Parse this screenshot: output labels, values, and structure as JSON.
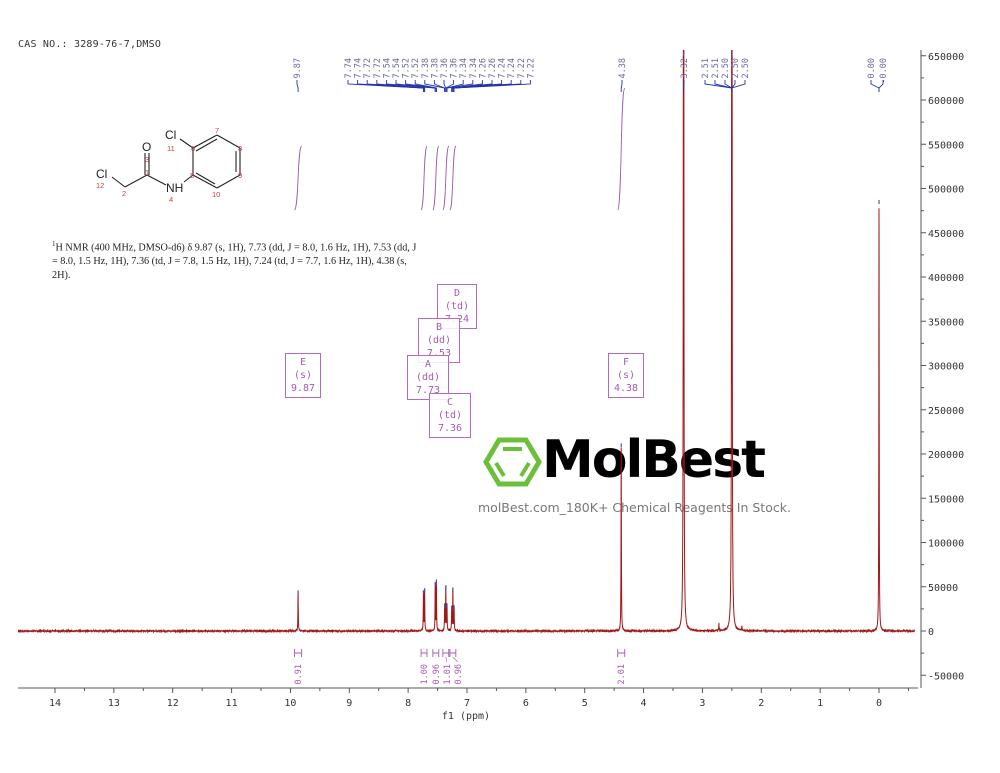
{
  "header": {
    "title": "CAS NO.: 3289-76-7,DMSO"
  },
  "nmr_description": {
    "line1_prefix": "1",
    "text": "H NMR (400 MHz, DMSO-d6) δ 9.87 (s, 1H), 7.73 (dd, J = 8.0, 1.6 Hz, 1H), 7.53 (dd, J = 8.0, 1.5 Hz, 1H), 7.36 (td, J = 7.8, 1.5 Hz, 1H), 7.24 (td, J = 7.7, 1.6 Hz, 1H), 4.38 (s, 2H)."
  },
  "structure": {
    "atoms": {
      "cl_left": "Cl",
      "cl_ring": "Cl",
      "o": "O",
      "nh": "NH"
    },
    "numbers": [
      "1",
      "2",
      "3",
      "4",
      "5",
      "6",
      "7",
      "8",
      "9",
      "10",
      "11",
      "12"
    ]
  },
  "watermark": {
    "name": "MolBest",
    "tagline": "molBest.com_180K+ Chemical Reagents In Stock.",
    "logo_color": "#6cbf3a"
  },
  "multiplet_boxes": [
    {
      "label": "E (s)",
      "shift": "9.87"
    },
    {
      "label": "D (td)",
      "shift": "7.24"
    },
    {
      "label": "B (dd)",
      "shift": "7.53"
    },
    {
      "label": "A (dd)",
      "shift": "7.73"
    },
    {
      "label": "C (td)",
      "shift": "7.36"
    },
    {
      "label": "F (s)",
      "shift": "4.38"
    }
  ],
  "chart_data": {
    "type": "line",
    "xlabel": "f1 (ppm)",
    "xlim": [
      14.63,
      -0.61
    ],
    "x_reversed": true,
    "ylim": [
      -64000,
      654000
    ],
    "x_ticks": [
      "14",
      "13",
      "12",
      "11",
      "10",
      "9",
      "8",
      "7",
      "6",
      "5",
      "4",
      "3",
      "2",
      "1",
      "0"
    ],
    "y_ticks": [
      "650000",
      "600000",
      "550000",
      "500000",
      "450000",
      "400000",
      "350000",
      "300000",
      "250000",
      "200000",
      "150000",
      "100000",
      "50000",
      "0",
      "-50000"
    ],
    "grid": false,
    "line_color": "#a01818",
    "peaks": [
      {
        "ppm": 9.87,
        "intensity": 46000
      },
      {
        "ppm": 7.74,
        "intensity": 46000
      },
      {
        "ppm": 7.72,
        "intensity": 48000
      },
      {
        "ppm": 7.54,
        "intensity": 55000
      },
      {
        "ppm": 7.52,
        "intensity": 57000
      },
      {
        "ppm": 7.38,
        "intensity": 30000
      },
      {
        "ppm": 7.36,
        "intensity": 51000
      },
      {
        "ppm": 7.34,
        "intensity": 30000
      },
      {
        "ppm": 7.26,
        "intensity": 28000
      },
      {
        "ppm": 7.24,
        "intensity": 48000
      },
      {
        "ppm": 7.22,
        "intensity": 28000
      },
      {
        "ppm": 4.38,
        "intensity": 212000
      },
      {
        "ppm": 3.32,
        "intensity": 2000000
      },
      {
        "ppm": 2.72,
        "intensity": 8000
      },
      {
        "ppm": 2.5,
        "intensity": 2000000
      },
      {
        "ppm": 2.33,
        "intensity": 5000
      },
      {
        "ppm": 0.0,
        "intensity": 487000
      }
    ],
    "peak_labels": {
      "single_987": [
        "9.87"
      ],
      "aromatic": [
        "7.74",
        "7.74",
        "7.72",
        "7.72",
        "7.54",
        "7.54",
        "7.52",
        "7.52",
        "7.38",
        "7.38",
        "7.36",
        "7.36",
        "7.34",
        "7.34",
        "7.26",
        "7.26",
        "7.24",
        "7.24",
        "7.22",
        "7.22"
      ],
      "single_438": [
        "4.38"
      ],
      "single_332": [
        "3.32"
      ],
      "dmso": [
        "2.51",
        "2.51",
        "2.50",
        "2.50",
        "2.50"
      ],
      "tms": [
        "0.00",
        "-0.00"
      ]
    },
    "integrals": [
      {
        "from": 9.93,
        "to": 9.81,
        "value": "0.91"
      },
      {
        "from": 7.78,
        "to": 7.68,
        "value": "1.00"
      },
      {
        "from": 7.58,
        "to": 7.48,
        "value": "0.96"
      },
      {
        "from": 7.41,
        "to": 7.31,
        "value": "1.01"
      },
      {
        "from": 7.29,
        "to": 7.19,
        "value": "0.96"
      },
      {
        "from": 4.44,
        "to": 4.32,
        "value": "2.01"
      }
    ]
  }
}
